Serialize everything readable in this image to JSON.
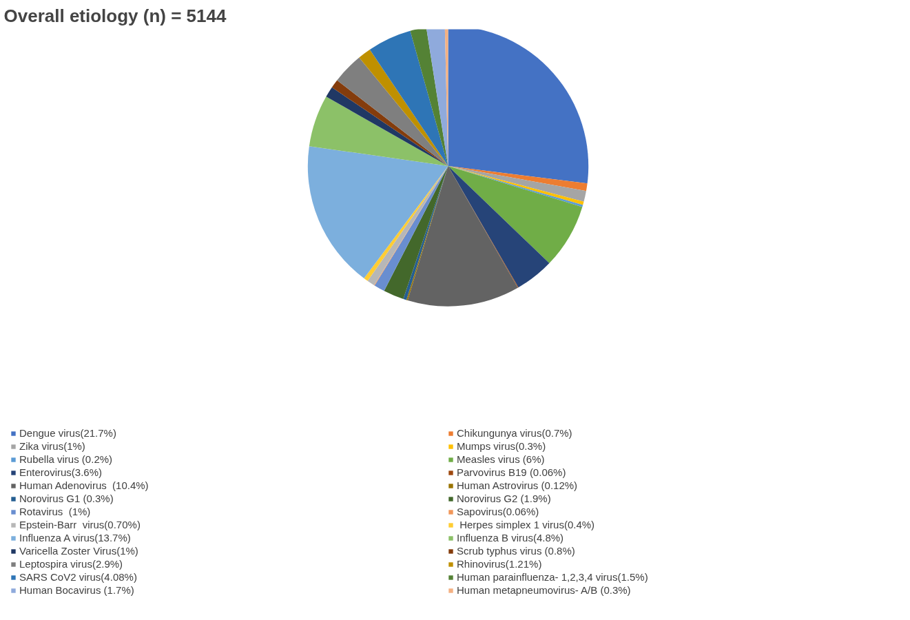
{
  "chart_data": {
    "type": "pie",
    "title": "Overall etiology (n) = 5144",
    "categories": [
      "Dengue virus(21.7%)",
      "Chikungunya virus(0.7%)",
      "Zika virus(1%)",
      "Mumps virus(0.3%)",
      "Rubella virus (0.2%)",
      "Measles virus (6%)",
      "Enterovirus(3.6%)",
      "Parvovirus B19 (0.06%)",
      "Human Adenovirus  (10.4%)",
      "Human Astrovirus (0.12%)",
      "Norovirus G1 (0.3%)",
      "Norovirus G2 (1.9%)",
      "Rotavirus  (1%)",
      "Sapovirus(0.06%)",
      "Epstein-Barr  virus(0.70%)",
      " Herpes simplex 1 virus(0.4%)",
      "Influenza A virus(13.7%)",
      "Influenza B virus(4.8%)",
      "Varicella Zoster Virus(1%)",
      "Scrub typhus virus (0.8%)",
      "Leptospira virus(2.9%)",
      "Rhinovirus(1.21%)",
      "SARS CoV2 virus(4.08%)",
      "Human parainfluenza- 1,2,3,4 virus(1.5%)",
      "Human Bocavirus (1.7%)",
      "Human metapneumovirus- A/B (0.3%)"
    ],
    "values": [
      21.7,
      0.7,
      1,
      0.3,
      0.2,
      6,
      3.6,
      0.06,
      10.4,
      0.12,
      0.3,
      1.9,
      1,
      0.06,
      0.7,
      0.4,
      13.7,
      4.8,
      1,
      0.8,
      2.9,
      1.21,
      4.08,
      1.5,
      1.7,
      0.3
    ],
    "colors": [
      "#4472c4",
      "#ed7d31",
      "#a5a5a5",
      "#ffc000",
      "#5b9bd5",
      "#70ad47",
      "#264478",
      "#9e480e",
      "#636363",
      "#997300",
      "#255e91",
      "#43682b",
      "#698ed0",
      "#f1975a",
      "#b7b7b7",
      "#ffcd33",
      "#7cafdd",
      "#8cc168",
      "#203864",
      "#843c0c",
      "#7f7f7f",
      "#bf9000",
      "#2e75b6",
      "#548235",
      "#8faadc",
      "#f4b183"
    ],
    "legend": "bottom"
  }
}
